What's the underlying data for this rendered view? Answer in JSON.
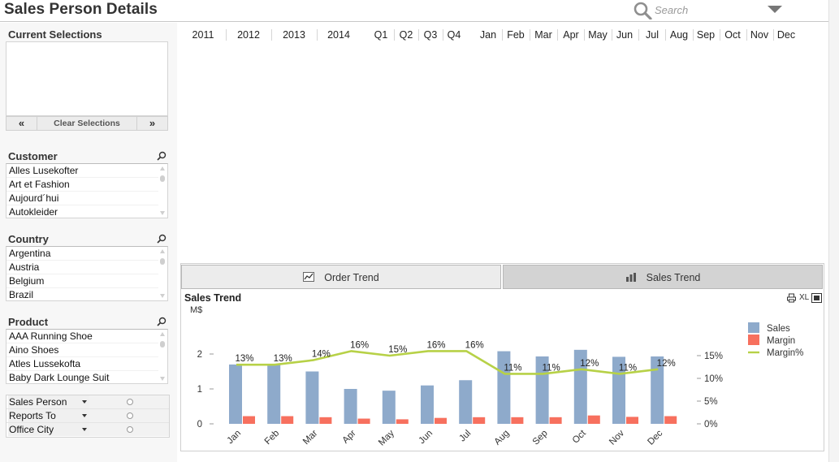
{
  "header": {
    "title": "Sales Person Details",
    "search_placeholder": "Search",
    "icons": [
      "search-icon",
      "dropdown-arrow-icon"
    ]
  },
  "current_selections": {
    "title": "Current Selections",
    "prev_label": "«",
    "clear_label": "Clear Selections",
    "next_label": "»"
  },
  "list_boxes": [
    {
      "title": "Customer",
      "items": [
        "Alles Lusekofter",
        "Art et Fashion",
        "Aujourd´hui",
        "Autokleider"
      ]
    },
    {
      "title": "Country",
      "items": [
        "Argentina",
        "Austria",
        "Belgium",
        "Brazil"
      ]
    },
    {
      "title": "Product",
      "items": [
        "AAA Running Shoe",
        "Aino Shoes",
        "Atles Lussekofta",
        "Baby Dark Lounge Suit"
      ]
    }
  ],
  "multibox": {
    "rows": [
      {
        "label": "Sales Person"
      },
      {
        "label": "Reports To"
      },
      {
        "label": "Office City"
      }
    ]
  },
  "calendar": {
    "years": [
      "2011",
      "2012",
      "2013",
      "2014"
    ],
    "quarters": [
      "Q1",
      "Q2",
      "Q3",
      "Q4"
    ],
    "months": [
      "Jan",
      "Feb",
      "Mar",
      "Apr",
      "May",
      "Jun",
      "Jul",
      "Aug",
      "Sep",
      "Oct",
      "Nov",
      "Dec"
    ]
  },
  "tabs": {
    "order_trend": "Order Trend",
    "sales_trend": "Sales Trend"
  },
  "chart_tools": {
    "excel_label": "XL"
  },
  "colors": {
    "sales": "#8eaacb",
    "margin": "#f7705e",
    "margin_pct": "#b7d147"
  },
  "chart_data": {
    "type": "bar",
    "title": "Sales Trend",
    "ylabel": "M$",
    "categories": [
      "Jan",
      "Feb",
      "Mar",
      "Apr",
      "May",
      "Jun",
      "Jul",
      "Aug",
      "Sep",
      "Oct",
      "Nov",
      "Dec"
    ],
    "series": [
      {
        "name": "Sales",
        "type": "bar",
        "axis": "left",
        "values": [
          1.7,
          1.72,
          1.5,
          1.0,
          0.95,
          1.1,
          1.25,
          2.08,
          1.93,
          2.12,
          1.92,
          1.93
        ]
      },
      {
        "name": "Margin",
        "type": "bar",
        "axis": "left",
        "values": [
          0.22,
          0.22,
          0.19,
          0.15,
          0.13,
          0.17,
          0.19,
          0.19,
          0.19,
          0.24,
          0.2,
          0.22
        ]
      },
      {
        "name": "Margin%",
        "type": "line",
        "axis": "right",
        "values": [
          13,
          13,
          14,
          16,
          15,
          16,
          16,
          11,
          11,
          12,
          11,
          12
        ],
        "labels": [
          "13%",
          "13%",
          "14%",
          "16%",
          "15%",
          "16%",
          "16%",
          "11%",
          "11%",
          "12%",
          "11%",
          "12%"
        ]
      }
    ],
    "y_left": {
      "ticks": [
        "0",
        "1",
        "2"
      ],
      "tick_values": [
        0,
        1,
        2
      ],
      "range": [
        0,
        2.3
      ]
    },
    "y_right": {
      "ticks": [
        "0%",
        "5%",
        "10%",
        "15%"
      ],
      "tick_values": [
        0,
        5,
        10,
        15
      ],
      "range": [
        0,
        21
      ]
    },
    "legend": {
      "position": "right",
      "entries": [
        "Sales",
        "Margin",
        "Margin%"
      ]
    },
    "grid": false
  }
}
